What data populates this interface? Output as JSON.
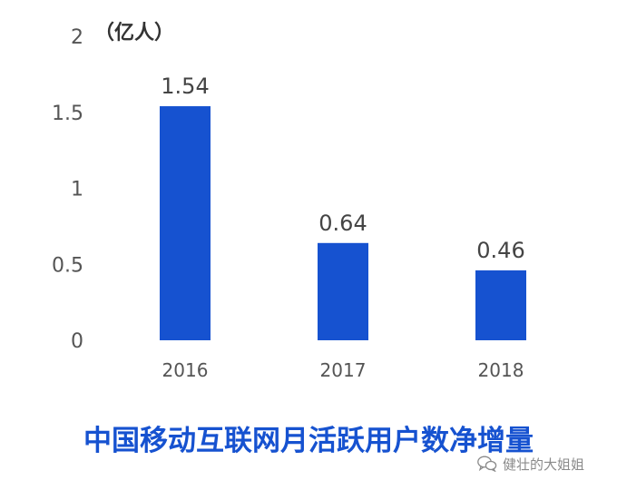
{
  "chart_data": {
    "type": "bar",
    "unit_label": "（亿人）",
    "categories": [
      "2016",
      "2017",
      "2018"
    ],
    "values": [
      1.54,
      0.64,
      0.46
    ],
    "data_labels": [
      "1.54",
      "0.64",
      "0.46"
    ],
    "yticks": [
      0,
      0.5,
      1,
      1.5,
      2
    ],
    "ytick_labels": [
      "0",
      "0.5",
      "1",
      "1.5",
      "2"
    ],
    "ylim": [
      0,
      2
    ],
    "bar_color": "#1652d0",
    "grid": false,
    "legend": "none",
    "title": "中国移动互联网月活跃用户数净增量"
  },
  "watermark": {
    "icon": "wechat-icon",
    "text": "健壮的大姐姐"
  }
}
